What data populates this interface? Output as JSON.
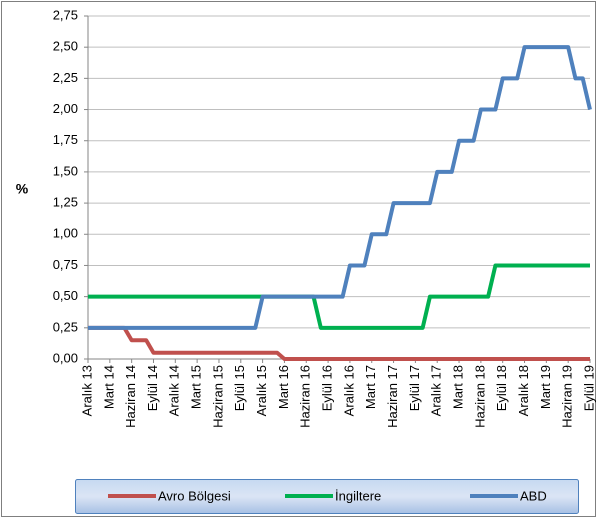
{
  "chart_data": {
    "type": "line",
    "y_label": "%",
    "categories": [
      "Aralık 13",
      null,
      null,
      "Mart 14",
      null,
      null,
      "Haziran 14",
      null,
      null,
      "Eylül 14",
      null,
      null,
      "Aralık 14",
      null,
      null,
      "Mart 15",
      null,
      null,
      "Haziran 15",
      null,
      null,
      "Eylül 15",
      null,
      null,
      "Aralık 15",
      null,
      null,
      "Mart 16",
      null,
      null,
      "Haziran 16",
      null,
      null,
      "Eylül 16",
      null,
      null,
      "Aralık 16",
      null,
      null,
      "Mart 17",
      null,
      null,
      "Haziran 17",
      null,
      null,
      "Eylül 17",
      null,
      null,
      "Aralık 17",
      null,
      null,
      "Mart 18",
      null,
      null,
      "Haziran 18",
      null,
      null,
      "Eylül 18",
      null,
      null,
      "Aralık 18",
      null,
      null,
      "Mart 19",
      null,
      null,
      "Haziran 19",
      null,
      null,
      "Eylül 19"
    ],
    "series": [
      {
        "name": "Avro Bölgesi",
        "color": "#c0504d",
        "values": [
          0.25,
          0.25,
          0.25,
          0.25,
          0.25,
          0.25,
          0.15,
          0.15,
          0.15,
          0.05,
          0.05,
          0.05,
          0.05,
          0.05,
          0.05,
          0.05,
          0.05,
          0.05,
          0.05,
          0.05,
          0.05,
          0.05,
          0.05,
          0.05,
          0.05,
          0.05,
          0.05,
          0,
          0,
          0,
          0,
          0,
          0,
          0,
          0,
          0,
          0,
          0,
          0,
          0,
          0,
          0,
          0,
          0,
          0,
          0,
          0,
          0,
          0,
          0,
          0,
          0,
          0,
          0,
          0,
          0,
          0,
          0,
          0,
          0,
          0,
          0,
          0,
          0,
          0,
          0,
          0,
          0,
          0,
          0
        ]
      },
      {
        "name": "İngiltere",
        "color": "#00b050",
        "values": [
          0.5,
          0.5,
          0.5,
          0.5,
          0.5,
          0.5,
          0.5,
          0.5,
          0.5,
          0.5,
          0.5,
          0.5,
          0.5,
          0.5,
          0.5,
          0.5,
          0.5,
          0.5,
          0.5,
          0.5,
          0.5,
          0.5,
          0.5,
          0.5,
          0.5,
          0.5,
          0.5,
          0.5,
          0.5,
          0.5,
          0.5,
          0.5,
          0.25,
          0.25,
          0.25,
          0.25,
          0.25,
          0.25,
          0.25,
          0.25,
          0.25,
          0.25,
          0.25,
          0.25,
          0.25,
          0.25,
          0.25,
          0.5,
          0.5,
          0.5,
          0.5,
          0.5,
          0.5,
          0.5,
          0.5,
          0.5,
          0.75,
          0.75,
          0.75,
          0.75,
          0.75,
          0.75,
          0.75,
          0.75,
          0.75,
          0.75,
          0.75,
          0.75,
          0.75,
          0.75
        ]
      },
      {
        "name": "ABD",
        "color": "#4f81bd",
        "values": [
          0.25,
          0.25,
          0.25,
          0.25,
          0.25,
          0.25,
          0.25,
          0.25,
          0.25,
          0.25,
          0.25,
          0.25,
          0.25,
          0.25,
          0.25,
          0.25,
          0.25,
          0.25,
          0.25,
          0.25,
          0.25,
          0.25,
          0.25,
          0.25,
          0.5,
          0.5,
          0.5,
          0.5,
          0.5,
          0.5,
          0.5,
          0.5,
          0.5,
          0.5,
          0.5,
          0.5,
          0.75,
          0.75,
          0.75,
          1,
          1,
          1,
          1.25,
          1.25,
          1.25,
          1.25,
          1.25,
          1.25,
          1.5,
          1.5,
          1.5,
          1.75,
          1.75,
          1.75,
          2,
          2,
          2,
          2.25,
          2.25,
          2.25,
          2.5,
          2.5,
          2.5,
          2.5,
          2.5,
          2.5,
          2.5,
          2.25,
          2.25,
          2
        ]
      }
    ],
    "ylim": [
      0,
      2.75
    ],
    "yticks": [
      {
        "value": 0,
        "label": "0,00"
      },
      {
        "value": 0.25,
        "label": "0,25"
      },
      {
        "value": 0.5,
        "label": "0,50"
      },
      {
        "value": 0.75,
        "label": "0,75"
      },
      {
        "value": 1,
        "label": "1,00"
      },
      {
        "value": 1.25,
        "label": "1,25"
      },
      {
        "value": 1.5,
        "label": "1,50"
      },
      {
        "value": 1.75,
        "label": "1,75"
      },
      {
        "value": 2,
        "label": "2,00"
      },
      {
        "value": 2.25,
        "label": "2,25"
      },
      {
        "value": 2.5,
        "label": "2,50"
      },
      {
        "value": 2.75,
        "label": "2,75"
      }
    ],
    "grid": true,
    "legend": "bottom"
  }
}
